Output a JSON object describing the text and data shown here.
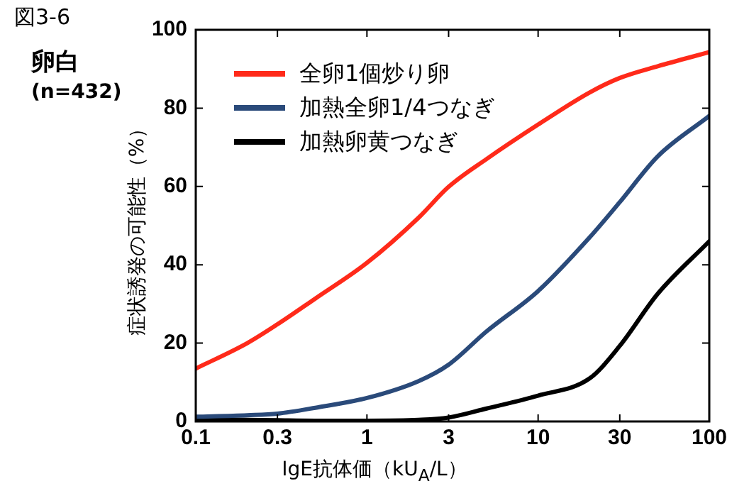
{
  "chart_data": {
    "type": "line",
    "title": "図3-6",
    "subtitle": "卵白",
    "annotations": [
      "(n=432)"
    ],
    "xlabel": "IgE抗体価（kU$_{A}$/L）",
    "ylabel": "症状誘発の可能性（%）",
    "log": "x",
    "xlim": [
      0.1,
      100
    ],
    "xticks": [
      0.1,
      0.3,
      1,
      3,
      10,
      30,
      100
    ],
    "ylim": [
      0,
      100
    ],
    "yticks": [
      0,
      20,
      40,
      60,
      80,
      100
    ],
    "grid": false,
    "legend": "top left",
    "marker": "none",
    "line_style": "solid",
    "x": [
      0.1,
      0.2,
      0.3,
      0.5,
      1,
      2,
      3,
      5,
      10,
      20,
      30,
      50,
      100
    ],
    "series": [
      {
        "name": "全卵1個炒り卵",
        "color": "#ff2a1a",
        "values": [
          13.5,
          20,
          24.8,
          31.4,
          40.5,
          52,
          59.9,
          67,
          75.8,
          84,
          87.7,
          90.7,
          94.3
        ]
      },
      {
        "name": "加熱全卵1/4つなぎ",
        "color": "#2a4a7a",
        "values": [
          1.2,
          1.6,
          2,
          3.5,
          6,
          10.3,
          14.5,
          23,
          33.3,
          47,
          56,
          67.7,
          78
        ]
      },
      {
        "name": "加熱卵黄つなぎ",
        "color": "#000000",
        "values": [
          0.6,
          0.4,
          0.3,
          0.2,
          0.2,
          0.4,
          1,
          3.3,
          6.6,
          11,
          19.3,
          32.6,
          46
        ]
      }
    ]
  }
}
